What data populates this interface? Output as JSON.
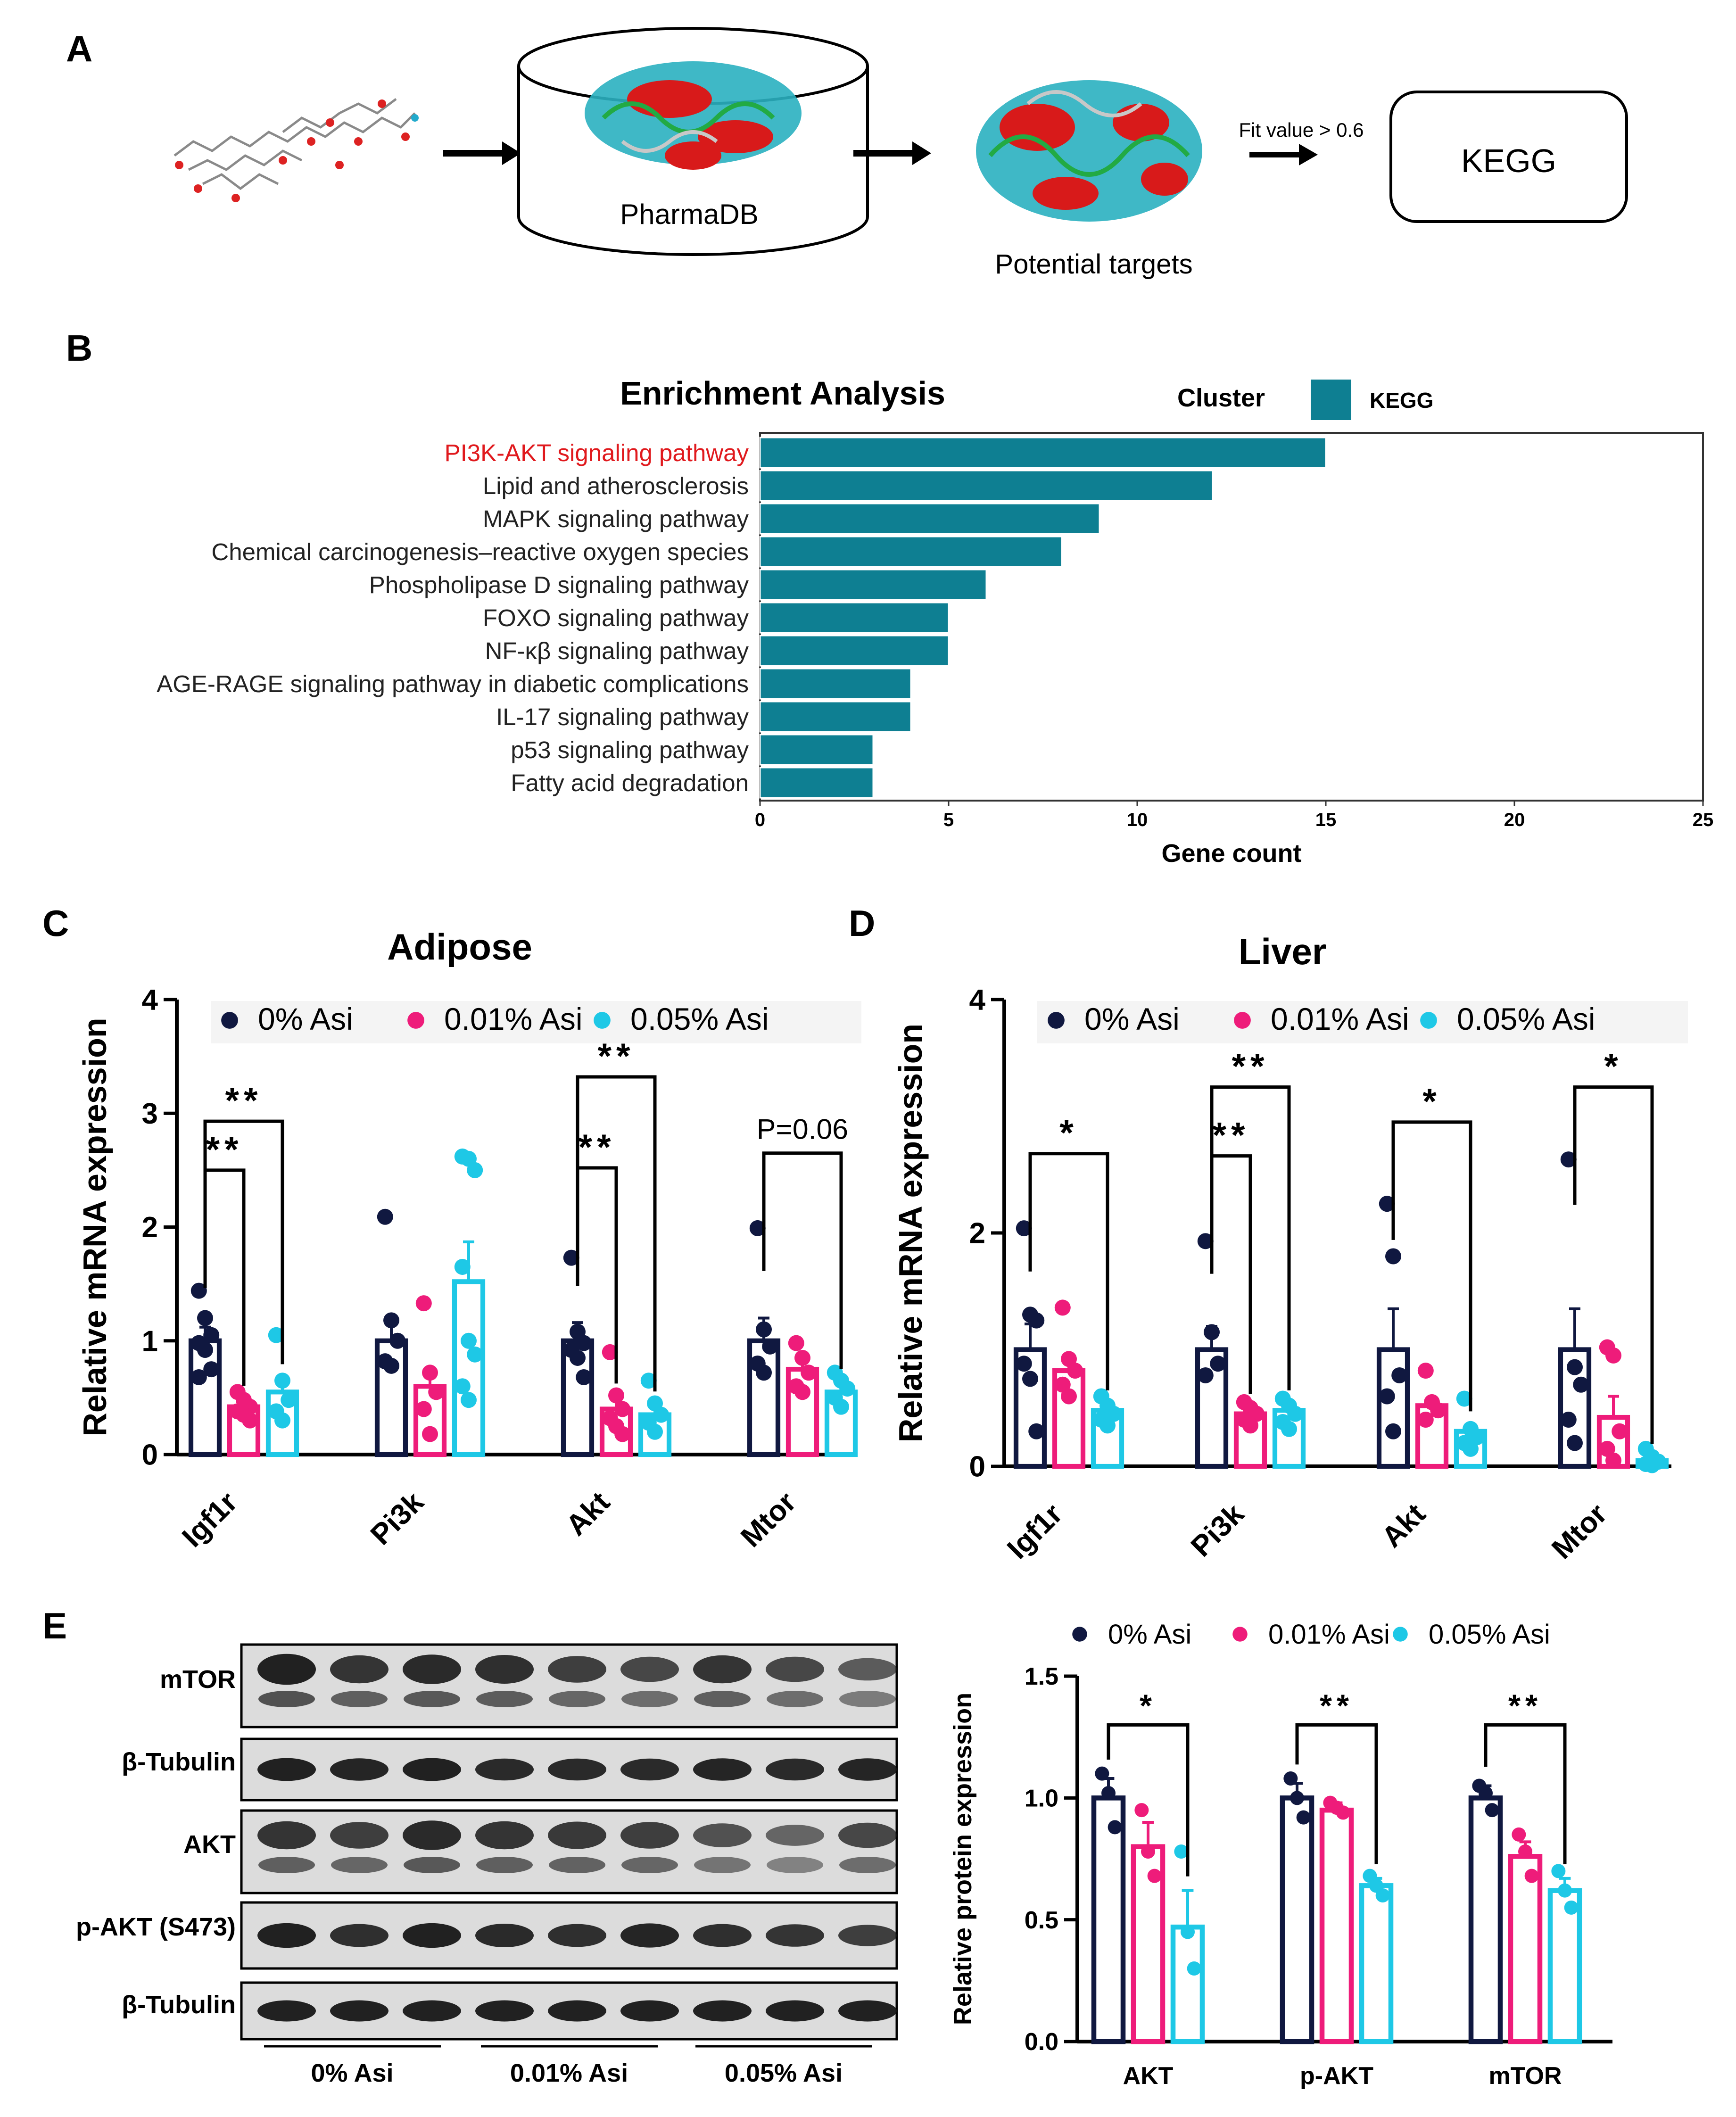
{
  "colors": {
    "ctrl": "#101840",
    "low": "#EE1C7A",
    "high": "#1EC8E6",
    "kegg": "#0E7F92",
    "highlight": "#E0191D",
    "axis": "#000000",
    "blot_bg": "#DCDCDC",
    "band": "#161616"
  },
  "panelA": {
    "label": "A",
    "db_label": "PharmaDB",
    "targets_label": "Potential targets",
    "fit_label": "Fit value > 0.6",
    "kegg_box": "KEGG",
    "icons": [
      "molecule-icon",
      "database-cylinder-icon",
      "protein-structure-icon",
      "arrow-icon"
    ]
  },
  "panelB": {
    "label": "B"
  },
  "panelC": {
    "label": "C"
  },
  "panelD": {
    "label": "D"
  },
  "panelE": {
    "label": "E",
    "blot_rows": [
      "mTOR",
      "β-Tubulin",
      "AKT",
      "p-AKT (S473)",
      "β-Tubulin"
    ],
    "group_labels": [
      "0% Asi",
      "0.01% Asi",
      "0.05% Asi"
    ]
  },
  "chart_data": [
    {
      "id": "B",
      "type": "bar",
      "orientation": "horizontal",
      "title": "Enrichment Analysis",
      "legend_title": "Cluster",
      "legend": [
        "KEGG"
      ],
      "xlabel": "Gene count",
      "xlim": [
        0,
        25
      ],
      "xticks": [
        0,
        5,
        10,
        15,
        20,
        25
      ],
      "highlighted": "PI3K-AKT signaling pathway",
      "categories": [
        "PI3K-AKT signaling pathway",
        "Lipid and atherosclerosis",
        "MAPK signaling pathway",
        "Chemical carcinogenesis–reactive oxygen species",
        "Phospholipase D signaling pathway",
        "FOXO signaling pathway",
        "NF-κβ signaling pathway",
        "AGE-RAGE signaling pathway in diabetic complications",
        "IL-17 signaling pathway",
        "p53 signaling pathway",
        "Fatty acid degradation"
      ],
      "values": [
        15,
        12,
        9,
        8,
        6,
        5,
        5,
        4,
        4,
        3,
        3
      ]
    },
    {
      "id": "C",
      "type": "bar",
      "title": "Adipose",
      "ylabel": "Relative mRNA expression",
      "ylim": [
        0,
        4
      ],
      "yticks": [
        "0",
        "1",
        "2",
        "3",
        "4"
      ],
      "categories": [
        "Igf1r",
        "Pi3k",
        "Akt",
        "Mtor"
      ],
      "series": [
        {
          "name": "0% Asi",
          "means": [
            1.0,
            1.0,
            1.0,
            1.0
          ],
          "sem": [
            0.12,
            0.2,
            0.16,
            0.2
          ],
          "points": [
            [
              1.44,
              1.2,
              1.05,
              0.98,
              0.92,
              0.75,
              0.68
            ],
            [
              2.09,
              1.18,
              1.0,
              0.82,
              0.78
            ],
            [
              1.73,
              1.08,
              0.98,
              0.92,
              0.85,
              0.68
            ],
            [
              1.99,
              1.1,
              0.95,
              0.8,
              0.72
            ]
          ]
        },
        {
          "name": "0.01% Asi",
          "means": [
            0.42,
            0.6,
            0.4,
            0.75
          ],
          "sem": [
            0.06,
            0.15,
            0.1,
            0.1
          ],
          "points": [
            [
              0.55,
              0.48,
              0.42,
              0.38,
              0.35,
              0.3
            ],
            [
              1.33,
              0.72,
              0.55,
              0.4,
              0.18
            ],
            [
              0.9,
              0.52,
              0.4,
              0.32,
              0.25,
              0.18
            ],
            [
              0.98,
              0.85,
              0.72,
              0.6,
              0.55
            ]
          ]
        },
        {
          "name": "0.05% Asi",
          "means": [
            0.55,
            1.52,
            0.35,
            0.55
          ],
          "sem": [
            0.12,
            0.35,
            0.08,
            0.08
          ],
          "points": [
            [
              1.05,
              0.65,
              0.48,
              0.38,
              0.3
            ],
            [
              2.62,
              2.6,
              2.5,
              1.65,
              1.0,
              0.88,
              0.6,
              0.48
            ],
            [
              0.65,
              0.45,
              0.35,
              0.28,
              0.2
            ],
            [
              0.72,
              0.65,
              0.58,
              0.5,
              0.42
            ]
          ]
        }
      ],
      "significance": [
        {
          "category": "Igf1r",
          "from": "0% Asi",
          "to": "0.01% Asi",
          "label": "**",
          "y": 2.5
        },
        {
          "category": "Igf1r",
          "from": "0% Asi",
          "to": "0.05% Asi",
          "label": "**",
          "y": 2.93
        },
        {
          "category": "Akt",
          "from": "0% Asi",
          "to": "0.01% Asi",
          "label": "**",
          "y": 2.52
        },
        {
          "category": "Akt",
          "from": "0% Asi",
          "to": "0.05% Asi",
          "label": "**",
          "y": 3.32
        },
        {
          "category": "Mtor",
          "from": "0% Asi",
          "to": "0.05% Asi",
          "label": "P=0.06",
          "y": 2.65
        }
      ]
    },
    {
      "id": "D",
      "type": "bar",
      "title": "Liver",
      "ylabel": "Relative mRNA expression",
      "ylim": [
        0,
        4
      ],
      "yticks": [
        "0",
        "2",
        "4"
      ],
      "categories": [
        "Igf1r",
        "Pi3k",
        "Akt",
        "Mtor"
      ],
      "series": [
        {
          "name": "0% Asi",
          "means": [
            1.0,
            1.0,
            1.0,
            1.0
          ],
          "sem": [
            0.22,
            0.2,
            0.35,
            0.35
          ],
          "points": [
            [
              2.04,
              1.3,
              1.25,
              0.88,
              0.75,
              0.3
            ],
            [
              1.93,
              1.15,
              0.88,
              0.78
            ],
            [
              2.25,
              1.8,
              0.78,
              0.6,
              0.3
            ],
            [
              2.63,
              0.85,
              0.7,
              0.4,
              0.2
            ]
          ]
        },
        {
          "name": "0.01% Asi",
          "means": [
            0.82,
            0.45,
            0.52,
            0.42
          ],
          "sem": [
            0.1,
            0.05,
            0.06,
            0.18
          ],
          "points": [
            [
              1.36,
              0.92,
              0.82,
              0.7,
              0.6
            ],
            [
              0.55,
              0.5,
              0.45,
              0.4,
              0.35
            ],
            [
              0.82,
              0.55,
              0.48,
              0.4
            ],
            [
              1.02,
              0.95,
              0.3,
              0.15,
              0.05
            ]
          ]
        },
        {
          "name": "0.05% Asi",
          "means": [
            0.48,
            0.48,
            0.3,
            0.05
          ],
          "sem": [
            0.05,
            0.05,
            0.05,
            0.02
          ],
          "points": [
            [
              0.6,
              0.52,
              0.45,
              0.4,
              0.35
            ],
            [
              0.58,
              0.52,
              0.45,
              0.38,
              0.32
            ],
            [
              0.58,
              0.32,
              0.25,
              0.2,
              0.15
            ],
            [
              0.15,
              0.08,
              0.04,
              0.02,
              0.01
            ]
          ]
        }
      ],
      "significance": [
        {
          "category": "Igf1r",
          "from": "0% Asi",
          "to": "0.05% Asi",
          "label": "*",
          "y": 2.68
        },
        {
          "category": "Pi3k",
          "from": "0% Asi",
          "to": "0.01% Asi",
          "label": "**",
          "y": 2.66
        },
        {
          "category": "Pi3k",
          "from": "0% Asi",
          "to": "0.05% Asi",
          "label": "**",
          "y": 3.25
        },
        {
          "category": "Akt",
          "from": "0% Asi",
          "to": "0.05% Asi",
          "label": "*",
          "y": 2.95
        },
        {
          "category": "Mtor",
          "from": "0% Asi",
          "to": "0.05% Asi",
          "label": "*",
          "y": 3.25
        }
      ]
    },
    {
      "id": "E",
      "type": "bar",
      "title": "",
      "ylabel": "Relative protein expression",
      "ylim": [
        0,
        1.5
      ],
      "yticks": [
        "0.0",
        "0.5",
        "1.0",
        "1.5"
      ],
      "categories": [
        "AKT",
        "p-AKT",
        "mTOR"
      ],
      "series": [
        {
          "name": "0% Asi",
          "means": [
            1.0,
            1.0,
            1.0
          ],
          "sem": [
            0.08,
            0.06,
            0.05
          ],
          "points": [
            [
              1.1,
              1.02,
              0.88
            ],
            [
              1.08,
              1.0,
              0.92
            ],
            [
              1.05,
              1.02,
              0.95
            ]
          ]
        },
        {
          "name": "0.01% Asi",
          "means": [
            0.8,
            0.95,
            0.76
          ],
          "sem": [
            0.1,
            0.03,
            0.06
          ],
          "points": [
            [
              0.95,
              0.78,
              0.68
            ],
            [
              0.98,
              0.96,
              0.94
            ],
            [
              0.85,
              0.78,
              0.68
            ]
          ]
        },
        {
          "name": "0.05% Asi",
          "means": [
            0.47,
            0.64,
            0.62
          ],
          "sem": [
            0.15,
            0.03,
            0.05
          ],
          "points": [
            [
              0.78,
              0.45,
              0.3
            ],
            [
              0.68,
              0.64,
              0.6
            ],
            [
              0.7,
              0.62,
              0.55
            ]
          ]
        }
      ],
      "significance": [
        {
          "category": "AKT",
          "from": "0% Asi",
          "to": "0.05% Asi",
          "label": "*",
          "y": 1.3
        },
        {
          "category": "p-AKT",
          "from": "0% Asi",
          "to": "0.05% Asi",
          "label": "**",
          "y": 1.3
        },
        {
          "category": "mTOR",
          "from": "0% Asi",
          "to": "0.05% Asi",
          "label": "**",
          "y": 1.3
        }
      ]
    }
  ]
}
